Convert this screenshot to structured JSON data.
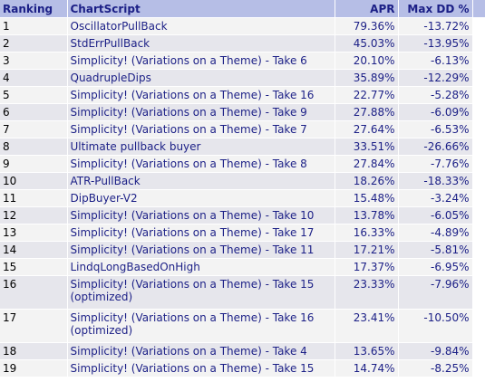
{
  "table": {
    "headers": {
      "ranking": "Ranking",
      "chartscript": "ChartScript",
      "apr": "APR",
      "max_dd": "Max DD %"
    },
    "rows": [
      {
        "rank": "1",
        "script": "OscillatorPullBack",
        "apr": "79.36%",
        "dd": "-13.72%"
      },
      {
        "rank": "2",
        "script": "StdErrPullBack",
        "apr": "45.03%",
        "dd": "-13.95%"
      },
      {
        "rank": "3",
        "script": "Simplicity! (Variations on a Theme) - Take 6",
        "apr": "20.10%",
        "dd": "-6.13%"
      },
      {
        "rank": "4",
        "script": "QuadrupleDips",
        "apr": "35.89%",
        "dd": "-12.29%"
      },
      {
        "rank": "5",
        "script": "Simplicity! (Variations on a Theme) - Take 16",
        "apr": "22.77%",
        "dd": "-5.28%"
      },
      {
        "rank": "6",
        "script": "Simplicity! (Variations on a Theme) - Take 9",
        "apr": "27.88%",
        "dd": "-6.09%"
      },
      {
        "rank": "7",
        "script": "Simplicity! (Variations on a Theme) - Take 7",
        "apr": "27.64%",
        "dd": "-6.53%"
      },
      {
        "rank": "8",
        "script": "Ultimate pullback buyer",
        "apr": "33.51%",
        "dd": "-26.66%"
      },
      {
        "rank": "9",
        "script": "Simplicity! (Variations on a Theme) - Take 8",
        "apr": "27.84%",
        "dd": "-7.76%"
      },
      {
        "rank": "10",
        "script": "ATR-PullBack",
        "apr": "18.26%",
        "dd": "-18.33%"
      },
      {
        "rank": "11",
        "script": "DipBuyer-V2",
        "apr": "15.48%",
        "dd": "-3.24%"
      },
      {
        "rank": "12",
        "script": "Simplicity! (Variations on a Theme) - Take 10",
        "apr": "13.78%",
        "dd": "-6.05%"
      },
      {
        "rank": "13",
        "script": "Simplicity! (Variations on a Theme) - Take 17",
        "apr": "16.33%",
        "dd": "-4.89%"
      },
      {
        "rank": "14",
        "script": "Simplicity! (Variations on a Theme) - Take 11",
        "apr": "17.21%",
        "dd": "-5.81%"
      },
      {
        "rank": "15",
        "script": "LindqLongBasedOnHigh",
        "apr": "17.37%",
        "dd": "-6.95%"
      },
      {
        "rank": "16",
        "script": "Simplicity! (Variations on a Theme) - Take 15 (optimized)",
        "apr": "23.33%",
        "dd": "-7.96%"
      },
      {
        "rank": "17",
        "script": "Simplicity! (Variations on a Theme) - Take 16 (optimized)",
        "apr": "23.41%",
        "dd": "-10.50%"
      },
      {
        "rank": "18",
        "script": "Simplicity! (Variations on a Theme) - Take 4",
        "apr": "13.65%",
        "dd": "-9.84%"
      },
      {
        "rank": "19",
        "script": "Simplicity! (Variations on a Theme) - Take 15",
        "apr": "14.74%",
        "dd": "-8.25%"
      }
    ]
  },
  "colors": {
    "header_bg": "#b6bee6",
    "text": "#1b1f86",
    "row_odd": "#f3f3f3",
    "row_even": "#e6e6ec"
  }
}
